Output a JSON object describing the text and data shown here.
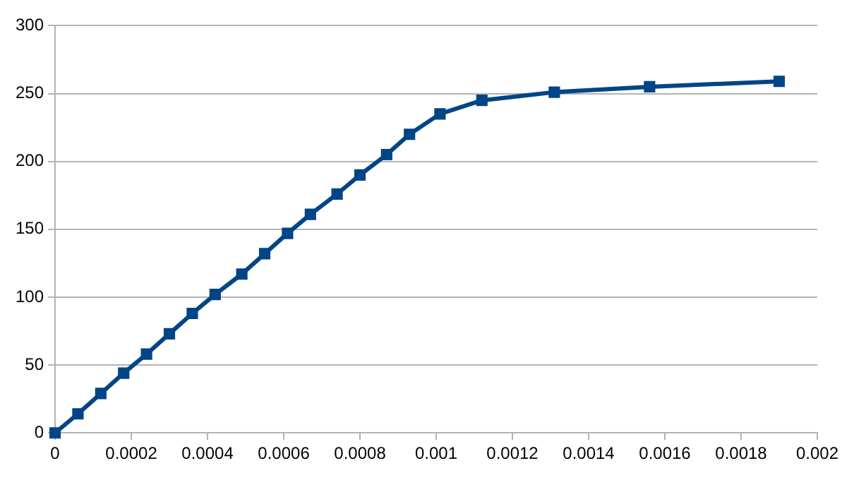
{
  "chart_data": {
    "type": "line",
    "x": [
      0,
      6e-05,
      0.00012,
      0.00018,
      0.00024,
      0.0003,
      0.00036,
      0.00042,
      0.00049,
      0.00055,
      0.00061,
      0.00067,
      0.00074,
      0.0008,
      0.00087,
      0.00093,
      0.00101,
      0.00112,
      0.00131,
      0.00156,
      0.0019
    ],
    "series": [
      {
        "color": "#004586",
        "values": [
          0,
          14,
          29,
          44,
          58,
          73,
          88,
          102,
          117,
          132,
          147,
          161,
          176,
          190,
          205,
          220,
          235,
          245,
          251,
          255,
          259
        ]
      }
    ],
    "xlim": [
      0,
      0.002
    ],
    "xticks": [
      0,
      0.0002,
      0.0004,
      0.0006,
      0.0008,
      0.001,
      0.0012,
      0.0014,
      0.0016,
      0.0018,
      0.002
    ],
    "ylim": [
      0,
      300
    ],
    "yticks": [
      0,
      50,
      100,
      150,
      200,
      250,
      300
    ],
    "grid": "y",
    "legend": false,
    "marker": "square",
    "line_style": "solid"
  }
}
